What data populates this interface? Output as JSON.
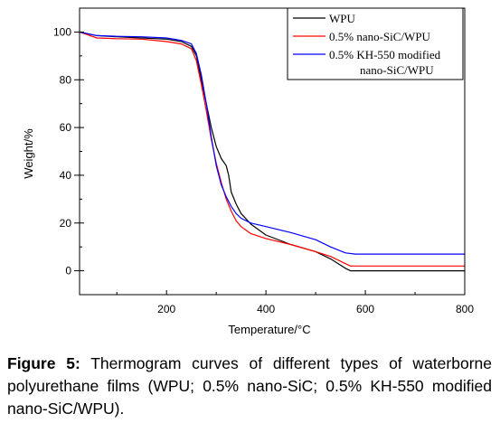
{
  "chart_data": {
    "type": "line",
    "title": "",
    "xlabel": "Temperature/°C",
    "ylabel": "Weight/%",
    "xlim": [
      25,
      800
    ],
    "ylim": [
      -10,
      110
    ],
    "x_ticks": [
      200,
      400,
      600,
      800
    ],
    "y_ticks": [
      0,
      20,
      40,
      60,
      80,
      100
    ],
    "grid": false,
    "legend_position": "top-right",
    "series": [
      {
        "name": "WPU",
        "color": "#000000",
        "x": [
          25,
          60,
          100,
          150,
          200,
          230,
          250,
          260,
          270,
          280,
          290,
          300,
          310,
          320,
          325,
          330,
          340,
          350,
          370,
          400,
          450,
          500,
          530,
          560,
          570,
          600,
          700,
          800
        ],
        "y": [
          100,
          98.5,
          98,
          97.5,
          97,
          96,
          94,
          90,
          80,
          70,
          60,
          52,
          47,
          44,
          40,
          33,
          28,
          24,
          19.5,
          15,
          11,
          8,
          5,
          1,
          0,
          0,
          0,
          0
        ]
      },
      {
        "name": "0.5% nano-SiC/WPU",
        "color": "#ff0000",
        "x": [
          25,
          60,
          100,
          150,
          200,
          230,
          250,
          260,
          270,
          280,
          290,
          300,
          310,
          320,
          330,
          340,
          350,
          370,
          400,
          450,
          500,
          530,
          560,
          570,
          600,
          700,
          800
        ],
        "y": [
          100,
          97.5,
          97.2,
          97,
          96,
          95,
          93,
          88,
          78,
          67,
          55,
          45,
          37,
          30,
          25,
          21,
          18.5,
          15.5,
          13.5,
          11,
          8,
          6,
          3,
          2,
          2,
          2,
          2
        ]
      },
      {
        "name": "0.5% KH-550 modified nano-SiC/WPU",
        "color": "#0000ff",
        "x": [
          25,
          60,
          100,
          150,
          200,
          230,
          250,
          260,
          270,
          280,
          290,
          300,
          310,
          320,
          330,
          340,
          350,
          370,
          400,
          450,
          500,
          530,
          560,
          580,
          600,
          700,
          800
        ],
        "y": [
          100,
          98.5,
          98.2,
          98,
          97.5,
          96.5,
          95,
          91,
          82,
          70,
          56,
          44,
          36,
          31,
          27,
          24,
          22,
          20,
          18.5,
          16,
          13,
          10,
          7.5,
          7,
          7,
          7,
          7
        ]
      }
    ]
  },
  "legend": {
    "entries": [
      "WPU",
      "0.5% nano-SiC/WPU",
      "0.5% KH-550 modified",
      "nano-SiC/WPU"
    ]
  },
  "caption": {
    "label": "Figure 5:",
    "text": " Thermogram curves of different types of waterborne polyurethane films (WPU; 0.5% nano-SiC; 0.5% KH-550 modified nano-SiC/WPU)."
  }
}
